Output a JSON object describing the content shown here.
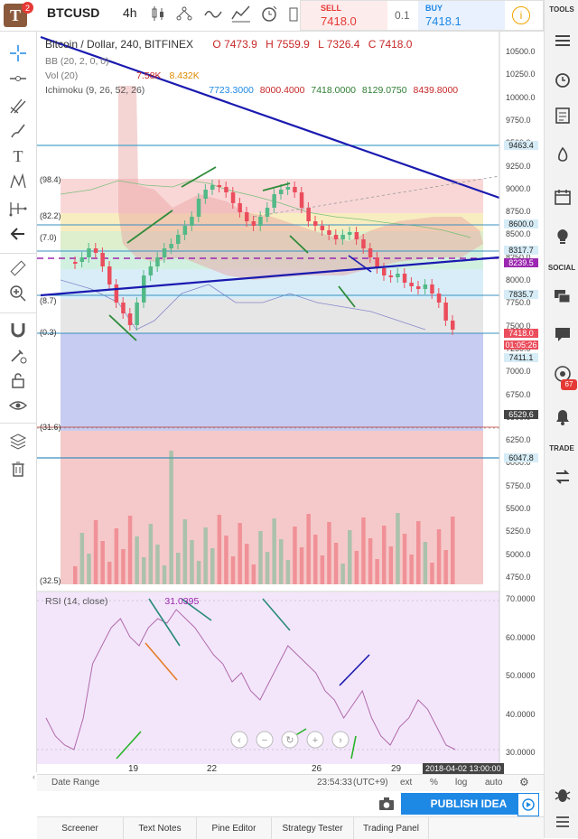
{
  "topbar": {
    "logo_letter": "T",
    "notification_count": "2",
    "symbol": "BTCUSD",
    "interval": "4h",
    "sell_label": "SELL",
    "sell_price": "7418.0",
    "spread": "0.1",
    "buy_label": "BUY",
    "buy_price": "7418.1",
    "info_icon": "i"
  },
  "right_panel": {
    "tools_label": "TOOLS",
    "social_label": "SOCIAL",
    "trade_label": "TRADE",
    "alert_count": "67"
  },
  "legend": {
    "title": "Bitcoin / Dollar, 240, BITFINEX",
    "open": "O 7473.9",
    "high": "H 7559.9",
    "low": "L 7326.4",
    "close": "C 7418.0",
    "bb": "BB (20, 2, 0, 0)",
    "vol": "Vol (20)",
    "vol_val1": "7.58K",
    "vol_val2": "8.432K",
    "ichimoku": "Ichimoku (9, 26, 52, 26)",
    "ichi1": "7723.3000",
    "ichi2": "8000.4000",
    "ichi3": "7418.0000",
    "ichi4": "8129.0750",
    "ichi5": "8439.8000",
    "rsi": "RSI (14, close)",
    "rsi_val": "31.0395"
  },
  "price_axis": [
    "10500.0",
    "10250.0",
    "10000.0",
    "9750.0",
    "9500.0",
    "9250.0",
    "9000.0",
    "8750.0",
    "8500.0",
    "8250.0",
    "8000.0",
    "7750.0",
    "7500.0",
    "7250.0",
    "7000.0",
    "6750.0",
    "6500.0",
    "6250.0",
    "6000.0",
    "5750.0",
    "5500.0",
    "5250.0",
    "5000.0",
    "4750.0"
  ],
  "price_labels": {
    "l1": "9463.4",
    "l2": "8600.0",
    "l3": "8317.7",
    "l4": "8239.5",
    "l5": "7835.7",
    "l6": "7418.0",
    "l6b": "01:05:26",
    "l7": "7411.1",
    "l8": "6529.6",
    "l9": "6047.8"
  },
  "fib_labels": [
    "(98.4)",
    "(82.2)",
    "(7.0)",
    "(8.7)",
    "(0.3)",
    "(31.6)",
    "(32.5)"
  ],
  "rsi_axis": [
    "70.0000",
    "60.0000",
    "50.0000",
    "40.0000",
    "30.0000"
  ],
  "time_axis": [
    "19",
    "22",
    "26",
    "29"
  ],
  "time_cursor_label": "2018-04-02 13:00:00",
  "date_range_bar": {
    "date_range": "Date Range",
    "clock": "23:54:33",
    "tz": "(UTC+9)",
    "ext": "ext",
    "pct": "%",
    "log": "log",
    "auto": "auto"
  },
  "publish_label": "PUBLISH IDEA",
  "bottom_tabs": [
    "Screener",
    "Text Notes",
    "Pine Editor",
    "Strategy Tester",
    "Trading Panel"
  ],
  "colors": {
    "up": "#53b987",
    "down": "#eb4d5c",
    "trend": "#1a1ab0",
    "accent": "#1e88e5",
    "rsi_bg": "#f3e6fb"
  }
}
